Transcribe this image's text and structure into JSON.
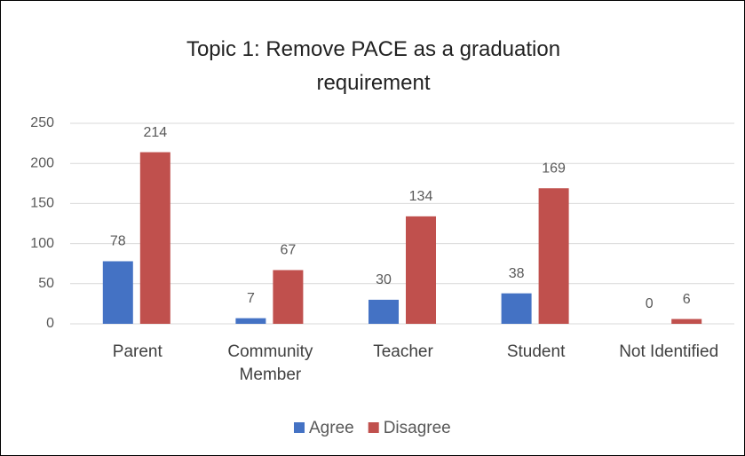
{
  "chart_data": {
    "type": "bar",
    "title": "Topic 1: Remove PACE as a graduation requirement",
    "categories": [
      "Parent",
      "Community Member",
      "Teacher",
      "Student",
      "Not Identified"
    ],
    "series": [
      {
        "name": "Agree",
        "color": "#4472c4",
        "values": [
          78,
          7,
          30,
          38,
          0
        ]
      },
      {
        "name": "Disagree",
        "color": "#c0504d",
        "values": [
          214,
          67,
          134,
          169,
          6
        ]
      }
    ],
    "ylim": [
      0,
      250
    ],
    "yticks": [
      0,
      50,
      100,
      150,
      200,
      250
    ],
    "grid": true,
    "legend": "bottom"
  }
}
